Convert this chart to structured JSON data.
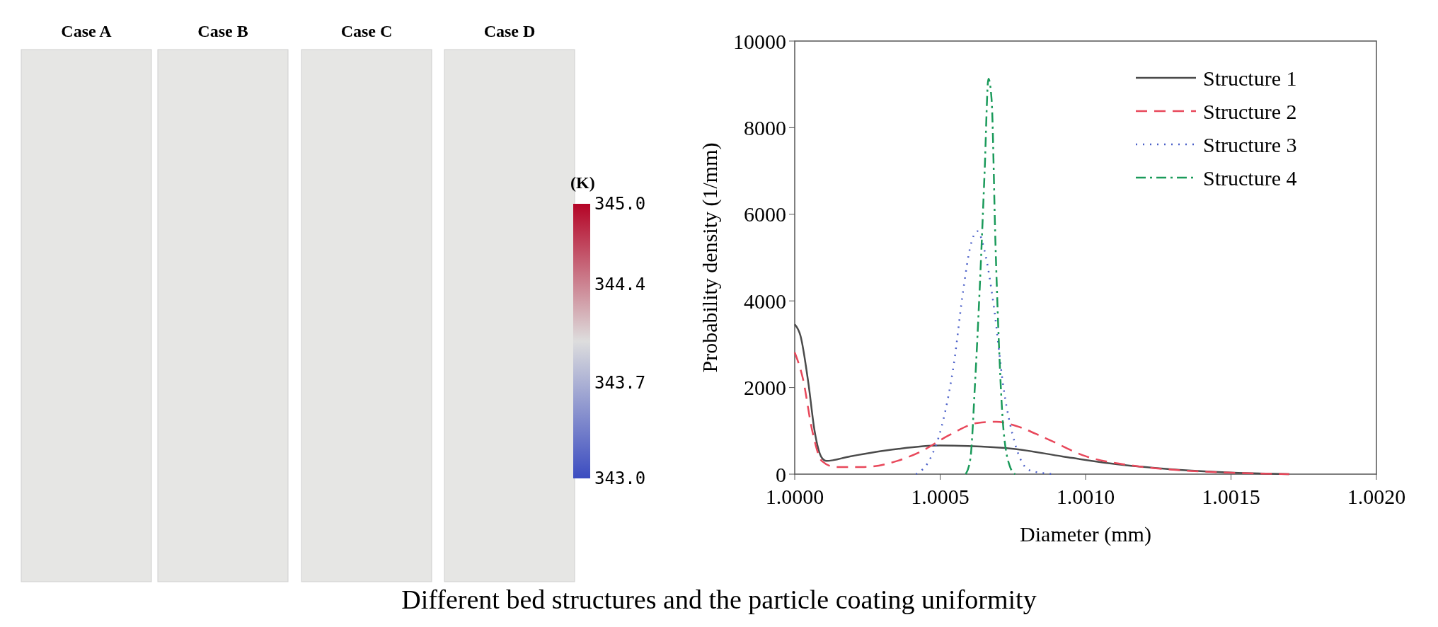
{
  "chart_data": {
    "type": "line",
    "title": "Different bed structures and the particle coating uniformity",
    "xlabel": "Diameter (mm)",
    "ylabel": "Probability density (1/mm)",
    "xlim": [
      1.0,
      1.002
    ],
    "xticks": [
      {
        "value": 1.0,
        "label": "1.0000"
      },
      {
        "value": 1.0005,
        "label": "1.0005"
      },
      {
        "value": 1.001,
        "label": "1.0010"
      },
      {
        "value": 1.0015,
        "label": "1.0015"
      },
      {
        "value": 1.002,
        "label": "1.0020"
      }
    ],
    "ylim": [
      0,
      10000
    ],
    "yticks": [
      0,
      2000,
      4000,
      6000,
      8000,
      10000
    ],
    "grid": false,
    "legend": "top right",
    "annotations": [
      "Case A",
      "Case B",
      "Case C",
      "Case D",
      "(K)",
      "345.0",
      "344.4",
      "343.7",
      "343.0"
    ],
    "series": [
      {
        "name": "Structure 1",
        "color": "#4a4a4a",
        "line_style": "solid",
        "x": [
          1.0,
          1.00002,
          1.000047,
          1.000068,
          1.000093,
          1.000109,
          1.00019,
          1.000352,
          1.000498,
          1.000596,
          1.000758,
          1.00092,
          1.001083,
          1.001245,
          1.001407,
          1.00157,
          1.0017
        ],
        "values": [
          3460,
          3190,
          2100,
          1010,
          380,
          305,
          410,
          580,
          660,
          650,
          580,
          410,
          250,
          140,
          65,
          20,
          0
        ]
      },
      {
        "name": "Structure 2",
        "color": "#e8475a",
        "line_style": "dashed",
        "x": [
          1.0,
          1.000028,
          1.00006,
          1.000093,
          1.000141,
          1.000239,
          1.000352,
          1.000433,
          1.000531,
          1.000628,
          1.000693,
          1.000758,
          1.000856,
          1.001002,
          1.001164,
          1.001326,
          1.001489,
          1.0017
        ],
        "values": [
          2810,
          2210,
          1010,
          305,
          165,
          165,
          305,
          520,
          900,
          1180,
          1210,
          1120,
          850,
          410,
          195,
          90,
          35,
          0
        ]
      },
      {
        "name": "Structure 3",
        "color": "#4a5fc8",
        "line_style": "dotted",
        "x": [
          1.000417,
          1.000466,
          1.000506,
          1.000547,
          1.00058,
          1.000604,
          1.000628,
          1.000653,
          1.000685,
          1.000718,
          1.000758,
          1.000807,
          1.000888
        ],
        "values": [
          0,
          360,
          1120,
          2540,
          4280,
          5260,
          5610,
          5150,
          3850,
          1990,
          690,
          90,
          0
        ]
      },
      {
        "name": "Structure 4",
        "color": "#1a9a5a",
        "line_style": "dashdot",
        "x": [
          1.000588,
          1.000604,
          1.00062,
          1.000636,
          1.000653,
          1.000666,
          1.000677,
          1.00069,
          1.000701,
          1.000718,
          1.000742,
          1.000758
        ],
        "values": [
          0,
          360,
          2100,
          4280,
          7000,
          9130,
          8640,
          5370,
          3190,
          1010,
          140,
          0
        ]
      }
    ]
  }
}
